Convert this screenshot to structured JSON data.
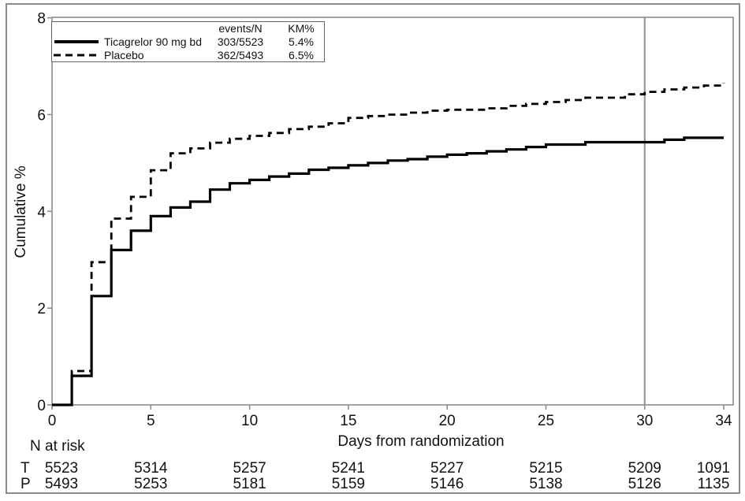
{
  "colors": {
    "curve": "#000000",
    "axis_gray": "#8c8c8c",
    "reference_gray": "#909090",
    "text": "#111111",
    "background": "#ffffff"
  },
  "chart_data": {
    "type": "line",
    "subtype": "kaplan-meier-step",
    "title": "",
    "xlabel": "Days from randomization",
    "ylabel": "Cumulative %",
    "xlim": [
      0,
      34
    ],
    "ylim": [
      0,
      8
    ],
    "xticks": [
      0,
      5,
      10,
      15,
      20,
      25,
      30,
      34
    ],
    "yticks": [
      0,
      2,
      4,
      6,
      8
    ],
    "grid": false,
    "reference_line_x": 30,
    "legend": {
      "position": "top-left",
      "col_headers": [
        "events/N",
        "KM%"
      ],
      "entries": [
        {
          "label": "Ticagrelor 90 mg bd",
          "style": "solid",
          "events_n": "303/5523",
          "km": "5.4%"
        },
        {
          "label": "Placebo",
          "style": "dashed",
          "events_n": "362/5493",
          "km": "6.5%"
        }
      ]
    },
    "series": [
      {
        "name": "Ticagrelor 90 mg bd",
        "style": "solid",
        "steps": [
          [
            0,
            0
          ],
          [
            1,
            0.6
          ],
          [
            2,
            2.25
          ],
          [
            3,
            3.2
          ],
          [
            4,
            3.6
          ],
          [
            5,
            3.9
          ],
          [
            6,
            4.08
          ],
          [
            7,
            4.2
          ],
          [
            8,
            4.45
          ],
          [
            9,
            4.58
          ],
          [
            10,
            4.65
          ],
          [
            11,
            4.72
          ],
          [
            12,
            4.78
          ],
          [
            13,
            4.86
          ],
          [
            14,
            4.9
          ],
          [
            15,
            4.95
          ],
          [
            16,
            5.0
          ],
          [
            17,
            5.05
          ],
          [
            18,
            5.08
          ],
          [
            19,
            5.13
          ],
          [
            20,
            5.17
          ],
          [
            21,
            5.2
          ],
          [
            22,
            5.24
          ],
          [
            23,
            5.28
          ],
          [
            24,
            5.33
          ],
          [
            25,
            5.38
          ],
          [
            27,
            5.43
          ],
          [
            31,
            5.48
          ],
          [
            32,
            5.52
          ],
          [
            34,
            5.52
          ]
        ]
      },
      {
        "name": "Placebo",
        "style": "dashed",
        "steps": [
          [
            0,
            0
          ],
          [
            1,
            0.7
          ],
          [
            2,
            2.95
          ],
          [
            3,
            3.85
          ],
          [
            4,
            4.3
          ],
          [
            5,
            4.85
          ],
          [
            6,
            5.2
          ],
          [
            7,
            5.3
          ],
          [
            8,
            5.42
          ],
          [
            9,
            5.5
          ],
          [
            10,
            5.56
          ],
          [
            11,
            5.62
          ],
          [
            12,
            5.7
          ],
          [
            13,
            5.75
          ],
          [
            14,
            5.82
          ],
          [
            15,
            5.93
          ],
          [
            16,
            5.97
          ],
          [
            17,
            6.0
          ],
          [
            18,
            6.04
          ],
          [
            19,
            6.08
          ],
          [
            20,
            6.1
          ],
          [
            22,
            6.13
          ],
          [
            23,
            6.18
          ],
          [
            24,
            6.22
          ],
          [
            25,
            6.26
          ],
          [
            26,
            6.3
          ],
          [
            27,
            6.35
          ],
          [
            29,
            6.42
          ],
          [
            30,
            6.47
          ],
          [
            31,
            6.52
          ],
          [
            32,
            6.56
          ],
          [
            33,
            6.6
          ],
          [
            34,
            6.65
          ]
        ]
      }
    ],
    "risk_table": {
      "title": "N at risk",
      "days": [
        0,
        5,
        10,
        15,
        20,
        25,
        30,
        34
      ],
      "rows": [
        {
          "label": "T",
          "values": [
            "5523",
            "5314",
            "5257",
            "5241",
            "5227",
            "5215",
            "5209",
            "1091"
          ]
        },
        {
          "label": "P",
          "values": [
            "5493",
            "5253",
            "5181",
            "5159",
            "5146",
            "5138",
            "5126",
            "1135"
          ]
        }
      ]
    }
  }
}
